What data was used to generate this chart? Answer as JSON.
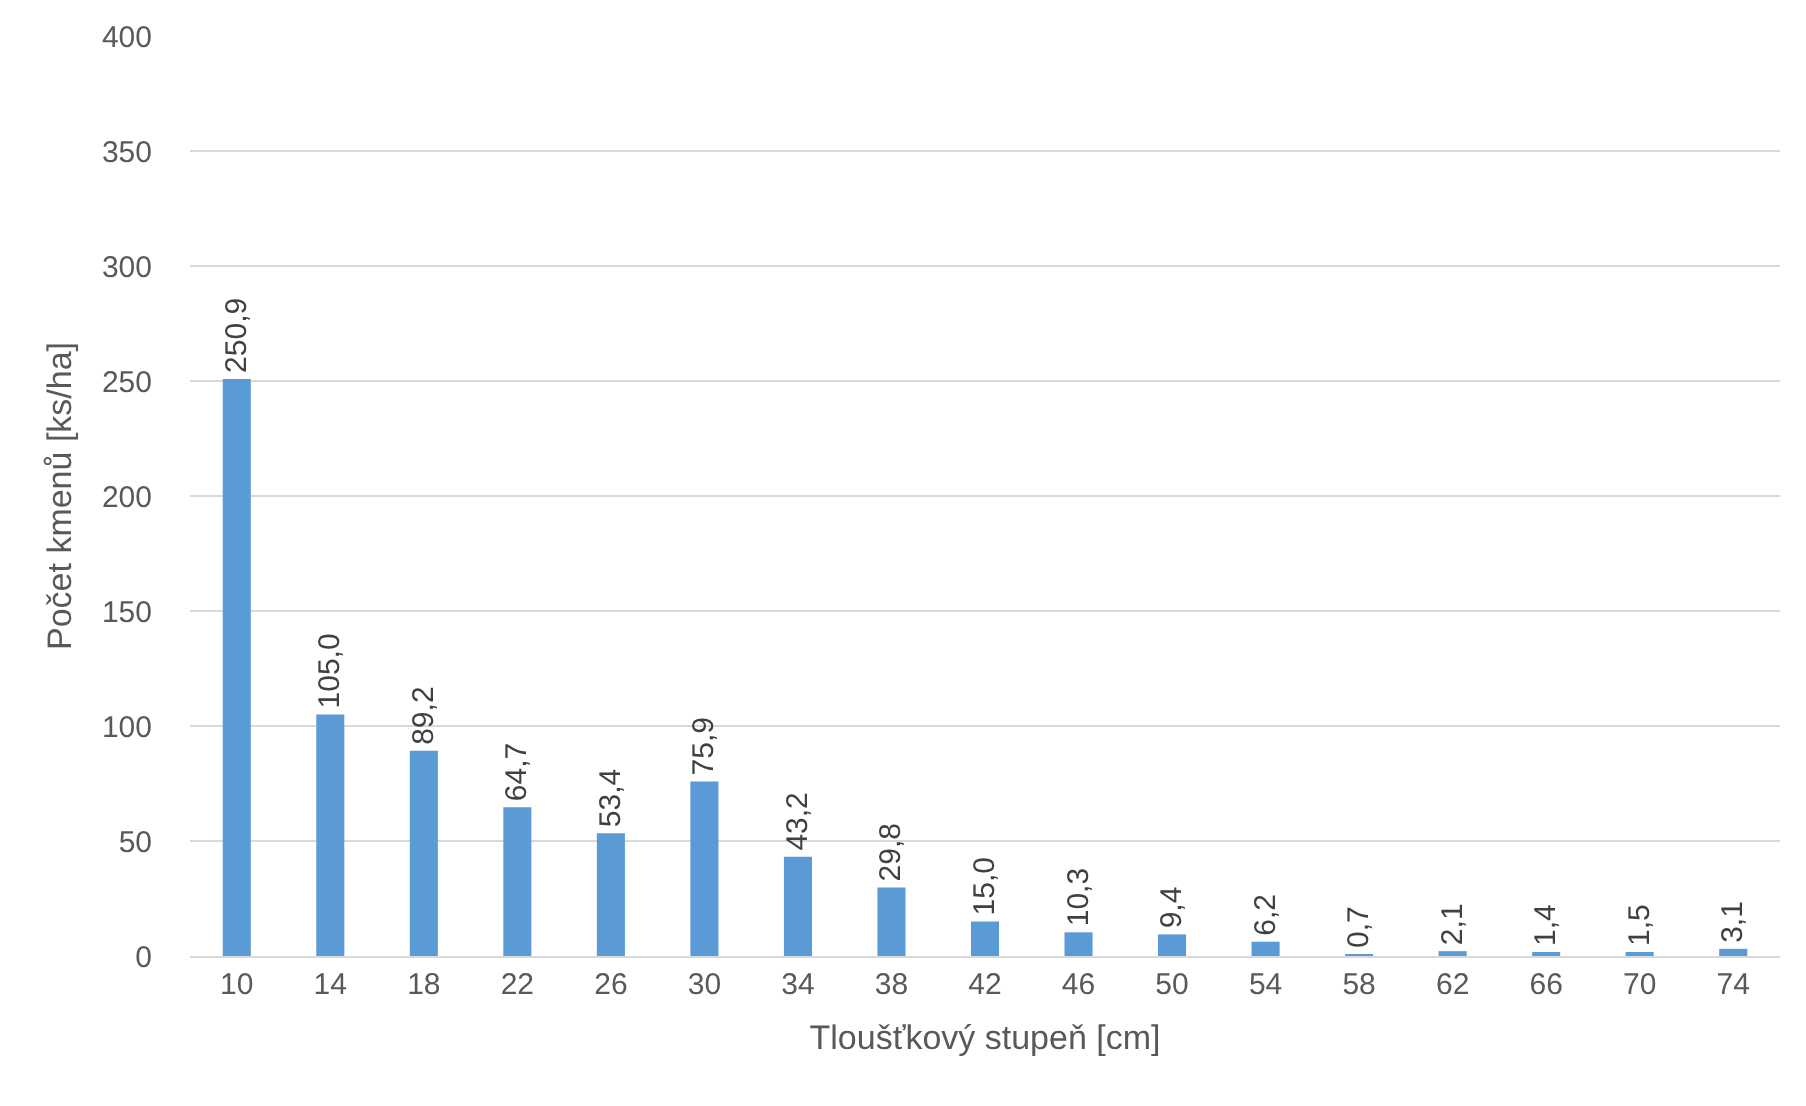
{
  "chart_data": {
    "type": "bar",
    "xlabel": "Tloušťkový stupeň [cm]",
    "ylabel": "Počet kmenů [ks/ha]",
    "categories": [
      "10",
      "14",
      "18",
      "22",
      "26",
      "30",
      "34",
      "38",
      "42",
      "46",
      "50",
      "54",
      "58",
      "62",
      "66",
      "70",
      "74"
    ],
    "values": [
      250.9,
      105.0,
      89.2,
      64.7,
      53.4,
      75.9,
      43.2,
      29.8,
      15.0,
      10.3,
      9.4,
      6.2,
      0.7,
      2.1,
      1.4,
      1.5,
      3.1
    ],
    "value_labels": [
      "250,9",
      "105,0",
      "89,2",
      "64,7",
      "53,4",
      "75,9",
      "43,2",
      "29,8",
      "15,0",
      "10,3",
      "9,4",
      "6,2",
      "0,7",
      "2,1",
      "1,4",
      "1,5",
      "3,1"
    ],
    "color": "#5b9bd5",
    "ylim": [
      0,
      400
    ],
    "yticks": [
      0,
      50,
      100,
      150,
      200,
      250,
      300,
      350,
      400
    ],
    "grid": "y"
  }
}
